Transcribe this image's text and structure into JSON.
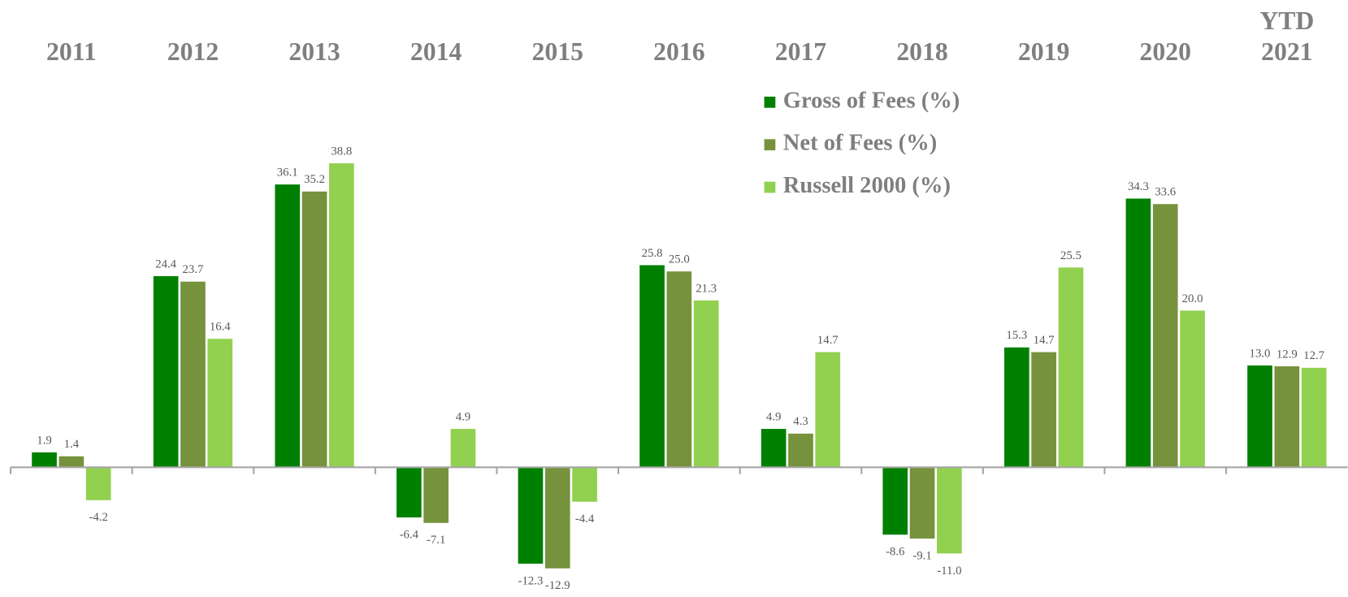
{
  "chart_data": {
    "type": "bar",
    "categories": [
      "2011",
      "2012",
      "2013",
      "2014",
      "2015",
      "2016",
      "2017",
      "2018",
      "2019",
      "2020",
      "YTD 2021"
    ],
    "series": [
      {
        "name": "Gross of Fees (%)",
        "color": "#008000",
        "values": [
          1.9,
          24.4,
          36.1,
          -6.4,
          -12.3,
          25.8,
          4.9,
          -8.6,
          15.3,
          34.3,
          13.0
        ],
        "value_labels": [
          "1.9",
          "24.4",
          "36.1",
          "-6.4",
          "-12.3",
          "25.8",
          "4.9",
          "-8.6",
          "15.3",
          "34.3",
          "13.0"
        ]
      },
      {
        "name": "Net of Fees (%)",
        "color": "#76923c",
        "values": [
          1.4,
          23.7,
          35.2,
          -7.1,
          -12.9,
          25.0,
          4.3,
          -9.1,
          14.7,
          33.6,
          12.9
        ],
        "value_labels": [
          "1.4",
          "23.7",
          "35.2",
          "-7.1",
          "-12.9",
          "25.0",
          "4.3",
          "-9.1",
          "14.7",
          "33.6",
          "12.9"
        ]
      },
      {
        "name": "Russell 2000 (%)",
        "color": "#92d050",
        "values": [
          -4.2,
          16.4,
          38.8,
          4.9,
          -4.4,
          21.3,
          14.7,
          -11.0,
          25.5,
          20.0,
          12.7
        ],
        "value_labels": [
          "-4.2",
          "16.4",
          "38.8",
          "4.9",
          "-4.4",
          "21.3",
          "14.7",
          "-11.0",
          "25.5",
          "20.0",
          "12.7"
        ]
      }
    ]
  }
}
